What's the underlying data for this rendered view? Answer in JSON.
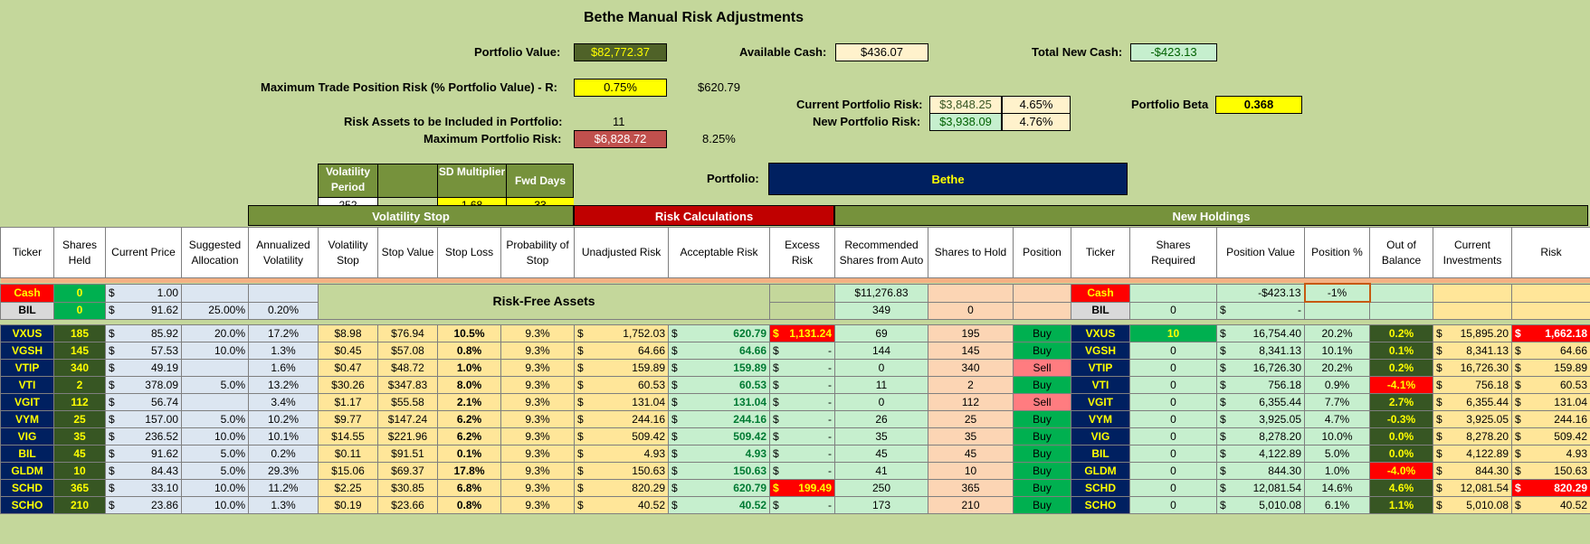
{
  "title": "Bethe Manual Risk Adjustments",
  "top": {
    "portfolio_value_label": "Portfolio Value:",
    "portfolio_value": "$82,772.37",
    "available_cash_label": "Available Cash:",
    "available_cash": "$436.07",
    "total_new_cash_label": "Total New Cash:",
    "total_new_cash": "-$423.13",
    "max_trade_risk_label": "Maximum Trade Position Risk (% Portfolio Value) - R:",
    "max_trade_risk_pct": "0.75%",
    "max_trade_risk_value": "$620.79",
    "current_risk_label": "Current Portfolio Risk:",
    "current_risk_value": "$3,848.25",
    "current_risk_pct": "4.65%",
    "portfolio_beta_label": "Portfolio Beta",
    "portfolio_beta": "0.368",
    "risk_assets_label": "Risk Assets to be Included in Portfolio:",
    "risk_assets_count": "11",
    "new_risk_label": "New Portfolio Risk:",
    "new_risk_value": "$3,938.09",
    "new_risk_pct": "4.76%",
    "max_portfolio_risk_label": "Maximum Portfolio Risk:",
    "max_portfolio_risk_value": "$6,828.72",
    "max_portfolio_risk_pct": "8.25%",
    "portfolio_label": "Portfolio:",
    "portfolio_name": "Bethe"
  },
  "params": {
    "h1": "Volatility Period",
    "h2": "",
    "h3": "SD Multiplier",
    "h4": "Fwd Days",
    "v1": "252",
    "v2": "",
    "v3": "1.68",
    "v4": "33"
  },
  "bands": {
    "volatility_stop": "Volatility Stop",
    "risk_calculations": "Risk Calculations",
    "new_holdings": "New Holdings"
  },
  "headers": [
    "Ticker",
    "Shares Held",
    "Current Price",
    "Suggested Allocation",
    "Annualized Volatility",
    "Volatility Stop",
    "Stop Value",
    "Stop Loss",
    "Probability of Stop",
    "Unadjusted Risk",
    "Acceptable Risk",
    "Excess Risk",
    "Recommended Shares from Auto",
    "Shares to Hold",
    "Position",
    "Ticker",
    "Shares Required",
    "Position Value",
    "Position %",
    "Out of Balance",
    "Current Investments",
    "Risk"
  ],
  "risk_free": {
    "label": "Risk-Free Assets",
    "cash": {
      "ticker": "Cash",
      "shares": "0",
      "price": "1.00",
      "rec": "$11,276.83",
      "ticker2": "Cash",
      "posval": "-$423.13",
      "pospct": "-1%"
    },
    "bil": {
      "ticker": "BIL",
      "shares": "0",
      "price": "91.62",
      "alloc": "25.00%",
      "vol": "0.20%",
      "rec": "349",
      "hold": "0",
      "ticker2": "BIL",
      "req": "0",
      "posval": "-"
    }
  },
  "rows": [
    {
      "t": "VXUS",
      "sh": "185",
      "px": "85.92",
      "al": "20.0%",
      "av": "17.2%",
      "vs": "$8.98",
      "sv": "$76.94",
      "sl": "10.5%",
      "ps": "9.3%",
      "ur": "1,752.03",
      "ar": "620.79",
      "er": "1,131.24",
      "rs": "69",
      "hd": "195",
      "pos": "Buy",
      "req": "10",
      "pv": "16,754.40",
      "pp": "20.2%",
      "ob": "0.2%",
      "ci": "15,895.20",
      "rk": "1,662.18"
    },
    {
      "t": "VGSH",
      "sh": "145",
      "px": "57.53",
      "al": "10.0%",
      "av": "1.3%",
      "vs": "$0.45",
      "sv": "$57.08",
      "sl": "0.8%",
      "ps": "9.3%",
      "ur": "64.66",
      "ar": "64.66",
      "er": "-",
      "rs": "144",
      "hd": "145",
      "pos": "Buy",
      "req": "0",
      "pv": "8,341.13",
      "pp": "10.1%",
      "ob": "0.1%",
      "ci": "8,341.13",
      "rk": "64.66"
    },
    {
      "t": "VTIP",
      "sh": "340",
      "px": "49.19",
      "al": "",
      "av": "1.6%",
      "vs": "$0.47",
      "sv": "$48.72",
      "sl": "1.0%",
      "ps": "9.3%",
      "ur": "159.89",
      "ar": "159.89",
      "er": "-",
      "rs": "0",
      "hd": "340",
      "pos": "Sell",
      "req": "0",
      "pv": "16,726.30",
      "pp": "20.2%",
      "ob": "0.2%",
      "ci": "16,726.30",
      "rk": "159.89"
    },
    {
      "t": "VTI",
      "sh": "2",
      "px": "378.09",
      "al": "5.0%",
      "av": "13.2%",
      "vs": "$30.26",
      "sv": "$347.83",
      "sl": "8.0%",
      "ps": "9.3%",
      "ur": "60.53",
      "ar": "60.53",
      "er": "-",
      "rs": "11",
      "hd": "2",
      "pos": "Buy",
      "req": "0",
      "pv": "756.18",
      "pp": "0.9%",
      "ob": "-4.1%",
      "ci": "756.18",
      "rk": "60.53"
    },
    {
      "t": "VGIT",
      "sh": "112",
      "px": "56.74",
      "al": "",
      "av": "3.4%",
      "vs": "$1.17",
      "sv": "$55.58",
      "sl": "2.1%",
      "ps": "9.3%",
      "ur": "131.04",
      "ar": "131.04",
      "er": "-",
      "rs": "0",
      "hd": "112",
      "pos": "Sell",
      "req": "0",
      "pv": "6,355.44",
      "pp": "7.7%",
      "ob": "2.7%",
      "ci": "6,355.44",
      "rk": "131.04"
    },
    {
      "t": "VYM",
      "sh": "25",
      "px": "157.00",
      "al": "5.0%",
      "av": "10.2%",
      "vs": "$9.77",
      "sv": "$147.24",
      "sl": "6.2%",
      "ps": "9.3%",
      "ur": "244.16",
      "ar": "244.16",
      "er": "-",
      "rs": "26",
      "hd": "25",
      "pos": "Buy",
      "req": "0",
      "pv": "3,925.05",
      "pp": "4.7%",
      "ob": "-0.3%",
      "ci": "3,925.05",
      "rk": "244.16"
    },
    {
      "t": "VIG",
      "sh": "35",
      "px": "236.52",
      "al": "10.0%",
      "av": "10.1%",
      "vs": "$14.55",
      "sv": "$221.96",
      "sl": "6.2%",
      "ps": "9.3%",
      "ur": "509.42",
      "ar": "509.42",
      "er": "-",
      "rs": "35",
      "hd": "35",
      "pos": "Buy",
      "req": "0",
      "pv": "8,278.20",
      "pp": "10.0%",
      "ob": "0.0%",
      "ci": "8,278.20",
      "rk": "509.42"
    },
    {
      "t": "BIL",
      "sh": "45",
      "px": "91.62",
      "al": "5.0%",
      "av": "0.2%",
      "vs": "$0.11",
      "sv": "$91.51",
      "sl": "0.1%",
      "ps": "9.3%",
      "ur": "4.93",
      "ar": "4.93",
      "er": "-",
      "rs": "45",
      "hd": "45",
      "pos": "Buy",
      "req": "0",
      "pv": "4,122.89",
      "pp": "5.0%",
      "ob": "0.0%",
      "ci": "4,122.89",
      "rk": "4.93"
    },
    {
      "t": "GLDM",
      "sh": "10",
      "px": "84.43",
      "al": "5.0%",
      "av": "29.3%",
      "vs": "$15.06",
      "sv": "$69.37",
      "sl": "17.8%",
      "ps": "9.3%",
      "ur": "150.63",
      "ar": "150.63",
      "er": "-",
      "rs": "41",
      "hd": "10",
      "pos": "Buy",
      "req": "0",
      "pv": "844.30",
      "pp": "1.0%",
      "ob": "-4.0%",
      "ci": "844.30",
      "rk": "150.63"
    },
    {
      "t": "SCHD",
      "sh": "365",
      "px": "33.10",
      "al": "10.0%",
      "av": "11.2%",
      "vs": "$2.25",
      "sv": "$30.85",
      "sl": "6.8%",
      "ps": "9.3%",
      "ur": "820.29",
      "ar": "620.79",
      "er": "199.49",
      "rs": "250",
      "hd": "365",
      "pos": "Buy",
      "req": "0",
      "pv": "12,081.54",
      "pp": "14.6%",
      "ob": "4.6%",
      "ci": "12,081.54",
      "rk": "820.29"
    },
    {
      "t": "SCHO",
      "sh": "210",
      "px": "23.86",
      "al": "10.0%",
      "av": "1.3%",
      "vs": "$0.19",
      "sv": "$23.66",
      "sl": "0.8%",
      "ps": "9.3%",
      "ur": "40.52",
      "ar": "40.52",
      "er": "-",
      "rs": "173",
      "hd": "210",
      "pos": "Buy",
      "req": "0",
      "pv": "5,010.08",
      "pp": "6.1%",
      "ob": "1.1%",
      "ci": "5,010.08",
      "rk": "40.52"
    }
  ],
  "currency": "$",
  "colors": {
    "background": "#c4d79b",
    "navy": "#002060",
    "red": "#ff0000",
    "buy": "#00b050",
    "sell": "#ff7c80"
  }
}
